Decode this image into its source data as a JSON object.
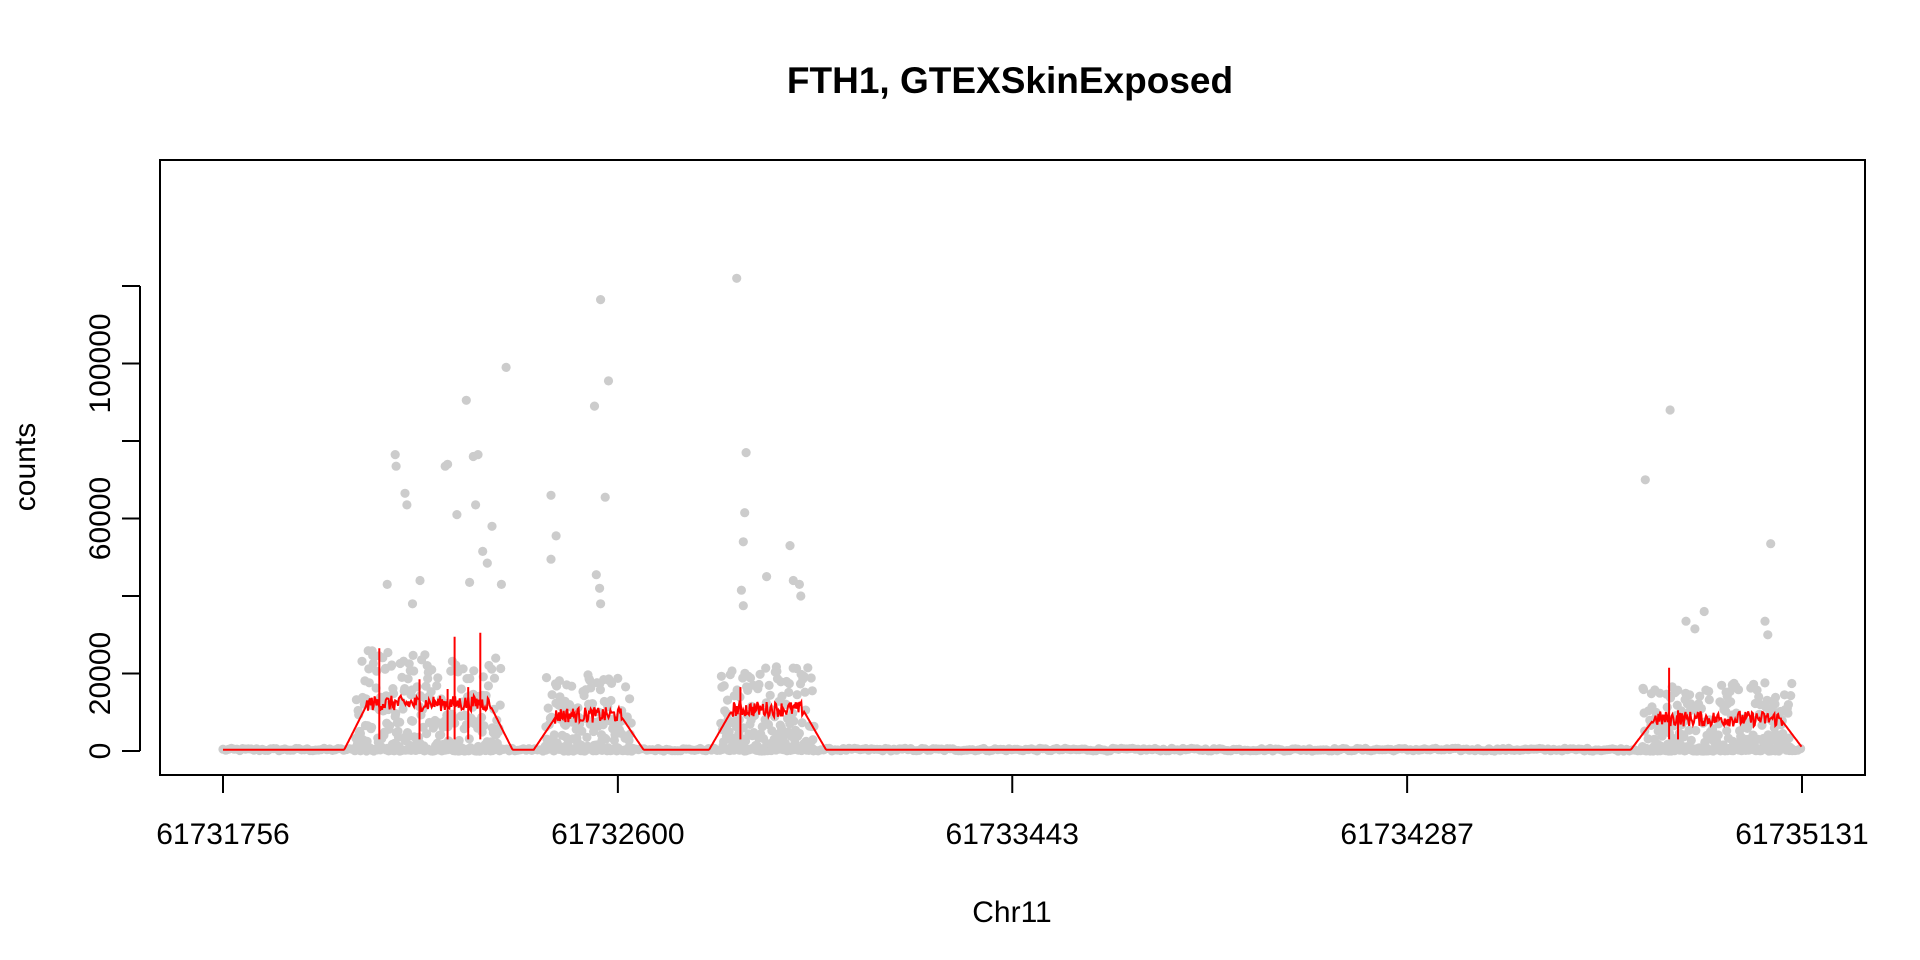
{
  "chart_data": {
    "type": "scatter",
    "title": "FTH1, GTEXSkinExposed",
    "xlabel": "Chr11",
    "ylabel": "counts",
    "xlim": [
      61731756,
      61735131
    ],
    "ylim": [
      0,
      120000
    ],
    "x_ticks": [
      61731756,
      61732600,
      61733443,
      61734287,
      61735131
    ],
    "x_tick_labels": [
      "61731756",
      "61732600",
      "61733443",
      "61734287",
      "61735131"
    ],
    "y_ticks": [
      0,
      20000,
      40000,
      60000,
      80000,
      100000,
      120000
    ],
    "y_tick_labels": [
      "0",
      "20000",
      "",
      "60000",
      "",
      "100000",
      ""
    ],
    "grid": false,
    "point_color": "#cccccc",
    "line_color": "#ff0000",
    "exon_regions": [
      {
        "start": 61732040,
        "end": 61732350,
        "mean_level": 12000
      },
      {
        "start": 61732445,
        "end": 61732630,
        "mean_level": 9000
      },
      {
        "start": 61732820,
        "end": 61733020,
        "mean_level": 10500
      },
      {
        "start": 61734790,
        "end": 61735110,
        "mean_level": 8000
      }
    ],
    "outliers": [
      {
        "x": 61732107,
        "y": 43000
      },
      {
        "x": 61732124,
        "y": 76500
      },
      {
        "x": 61732126,
        "y": 73500
      },
      {
        "x": 61732145,
        "y": 66500
      },
      {
        "x": 61732149,
        "y": 63500
      },
      {
        "x": 61732231,
        "y": 73500
      },
      {
        "x": 61732236,
        "y": 74000
      },
      {
        "x": 61732256,
        "y": 61000
      },
      {
        "x": 61732276,
        "y": 90500
      },
      {
        "x": 61732291,
        "y": 76000
      },
      {
        "x": 61732301,
        "y": 76500
      },
      {
        "x": 61732296,
        "y": 63500
      },
      {
        "x": 61732321,
        "y": 48500
      },
      {
        "x": 61732331,
        "y": 58000
      },
      {
        "x": 61732361,
        "y": 99000
      },
      {
        "x": 61732283,
        "y": 43500
      },
      {
        "x": 61732311,
        "y": 51500
      },
      {
        "x": 61732351,
        "y": 43000
      },
      {
        "x": 61732161,
        "y": 38000
      },
      {
        "x": 61732177,
        "y": 44000
      },
      {
        "x": 61732457,
        "y": 66000
      },
      {
        "x": 61732457,
        "y": 49500
      },
      {
        "x": 61732468,
        "y": 55500
      },
      {
        "x": 61732563,
        "y": 116500
      },
      {
        "x": 61732580,
        "y": 95500
      },
      {
        "x": 61732550,
        "y": 89000
      },
      {
        "x": 61732573,
        "y": 65500
      },
      {
        "x": 61732554,
        "y": 45500
      },
      {
        "x": 61732561,
        "y": 42000
      },
      {
        "x": 61732563,
        "y": 38000
      },
      {
        "x": 61732854,
        "y": 122000
      },
      {
        "x": 61732874,
        "y": 77000
      },
      {
        "x": 61732871,
        "y": 61500
      },
      {
        "x": 61732868,
        "y": 54000
      },
      {
        "x": 61732918,
        "y": 45000
      },
      {
        "x": 61732968,
        "y": 53000
      },
      {
        "x": 61732975,
        "y": 44000
      },
      {
        "x": 61732988,
        "y": 43000
      },
      {
        "x": 61732991,
        "y": 40000
      },
      {
        "x": 61732864,
        "y": 41500
      },
      {
        "x": 61732868,
        "y": 37500
      },
      {
        "x": 61734796,
        "y": 70000
      },
      {
        "x": 61734849,
        "y": 88000
      },
      {
        "x": 61734883,
        "y": 33500
      },
      {
        "x": 61734922,
        "y": 36000
      },
      {
        "x": 61735064,
        "y": 53500
      },
      {
        "x": 61735058,
        "y": 30000
      },
      {
        "x": 61735052,
        "y": 33500
      },
      {
        "x": 61734902,
        "y": 31500
      }
    ]
  }
}
